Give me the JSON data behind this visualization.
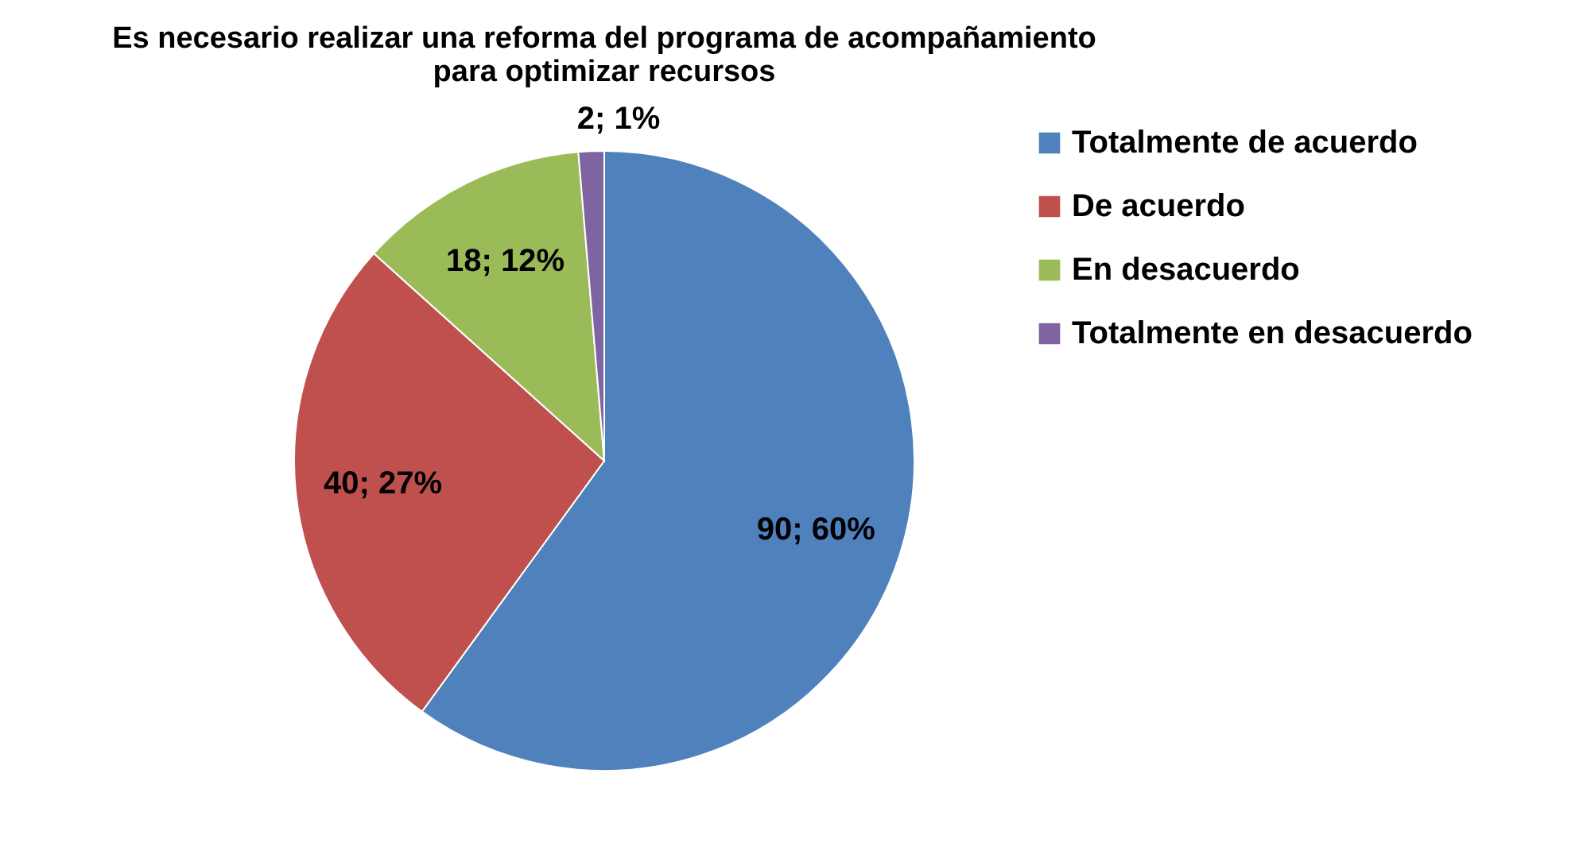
{
  "chart_data": {
    "type": "pie",
    "title": "Es necesario realizar una reforma del programa de acompañamiento para optimizar recursos",
    "categories": [
      "Totalmente de acuerdo",
      "De acuerdo",
      "En desacuerdo",
      "Totalmente en desacuerdo"
    ],
    "values": [
      90,
      40,
      18,
      2
    ],
    "value_labels": [
      "90; 60%",
      "40; 27%",
      "18; 12%",
      "2; 1%"
    ],
    "colors": [
      "#4f81bd",
      "#c0504d",
      "#9bbb59",
      "#8064a2"
    ],
    "legend": "right"
  }
}
